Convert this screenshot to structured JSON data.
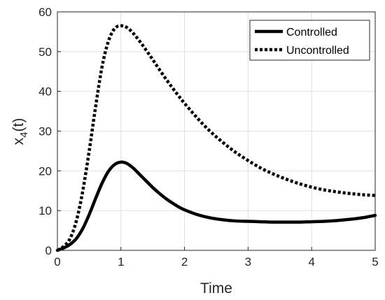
{
  "chart_data": {
    "type": "line",
    "xlabel": "Time",
    "ylabel_main": "x",
    "ylabel_sub": "4",
    "ylabel_suffix": "(t)",
    "xlim": [
      0,
      5
    ],
    "ylim": [
      0,
      60
    ],
    "xticks": [
      "0",
      "1",
      "2",
      "3",
      "4",
      "5"
    ],
    "yticks": [
      "0",
      "10",
      "20",
      "30",
      "40",
      "50",
      "60"
    ],
    "grid": true,
    "legend_position": "top-right",
    "series": [
      {
        "name": "Controlled",
        "style": "solid",
        "color": "#000000",
        "x": [
          0,
          0.1,
          0.2,
          0.3,
          0.4,
          0.5,
          0.6,
          0.7,
          0.8,
          0.9,
          1.0,
          1.1,
          1.2,
          1.3,
          1.4,
          1.5,
          1.6,
          1.7,
          1.8,
          1.9,
          2.0,
          2.2,
          2.4,
          2.6,
          2.8,
          3.0,
          3.2,
          3.4,
          3.6,
          3.8,
          4.0,
          4.2,
          4.4,
          4.6,
          4.8,
          5.0
        ],
        "y": [
          0,
          0.6,
          1.5,
          3.0,
          5.5,
          9.0,
          13.0,
          16.8,
          19.8,
          21.6,
          22.2,
          21.8,
          20.6,
          19.0,
          17.4,
          15.8,
          14.4,
          13.1,
          12.0,
          11.0,
          10.2,
          9.0,
          8.2,
          7.7,
          7.4,
          7.3,
          7.2,
          7.1,
          7.1,
          7.1,
          7.2,
          7.3,
          7.5,
          7.8,
          8.2,
          8.8
        ]
      },
      {
        "name": "Uncontrolled",
        "style": "dotted",
        "color": "#000000",
        "x": [
          0,
          0.1,
          0.2,
          0.3,
          0.4,
          0.5,
          0.6,
          0.7,
          0.8,
          0.9,
          1.0,
          1.1,
          1.2,
          1.3,
          1.4,
          1.5,
          1.6,
          1.7,
          1.8,
          1.9,
          2.0,
          2.2,
          2.4,
          2.6,
          2.8,
          3.0,
          3.2,
          3.4,
          3.6,
          3.8,
          4.0,
          4.2,
          4.4,
          4.6,
          4.8,
          5.0
        ],
        "y": [
          0,
          1.0,
          3.0,
          7.5,
          15.0,
          25.0,
          36.0,
          46.0,
          52.5,
          55.8,
          56.5,
          56.0,
          54.5,
          52.5,
          50.3,
          48.0,
          45.6,
          43.3,
          41.1,
          39.0,
          37.0,
          33.3,
          30.0,
          27.2,
          24.7,
          22.6,
          20.7,
          19.2,
          17.9,
          16.8,
          15.9,
          15.2,
          14.7,
          14.3,
          14.0,
          13.8
        ]
      }
    ]
  }
}
